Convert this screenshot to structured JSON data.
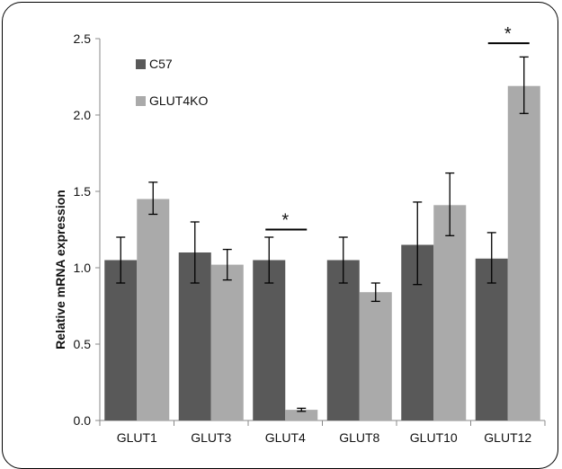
{
  "chart_data": {
    "type": "bar",
    "title": "",
    "xlabel": "",
    "ylabel": "Relative mRNA expression",
    "ylim": [
      0,
      2.5
    ],
    "yticks": [
      "0.0",
      "0.5",
      "1.0",
      "1.5",
      "2.0",
      "2.5"
    ],
    "categories": [
      "GLUT1",
      "GLUT3",
      "GLUT4",
      "GLUT8",
      "GLUT10",
      "GLUT12"
    ],
    "series": [
      {
        "name": "C57",
        "color": "#595959",
        "values": [
          1.05,
          1.1,
          1.05,
          1.05,
          1.15,
          1.06
        ],
        "err_low": [
          0.9,
          0.9,
          0.9,
          0.9,
          0.89,
          0.9
        ],
        "err_high": [
          1.2,
          1.3,
          1.2,
          1.2,
          1.43,
          1.23
        ]
      },
      {
        "name": "GLUT4KO",
        "color": "#aaaaaa",
        "values": [
          1.45,
          1.02,
          0.07,
          0.84,
          1.41,
          2.19
        ],
        "err_low": [
          1.35,
          0.92,
          0.06,
          0.78,
          1.21,
          2.01
        ],
        "err_high": [
          1.56,
          1.12,
          0.08,
          0.9,
          1.62,
          2.38
        ]
      }
    ],
    "legend_position": "top-left",
    "grid": false,
    "annotations": [
      {
        "category": "GLUT4",
        "text": "*",
        "y": 1.25
      },
      {
        "category": "GLUT12",
        "text": "*",
        "y": 2.47
      }
    ]
  }
}
